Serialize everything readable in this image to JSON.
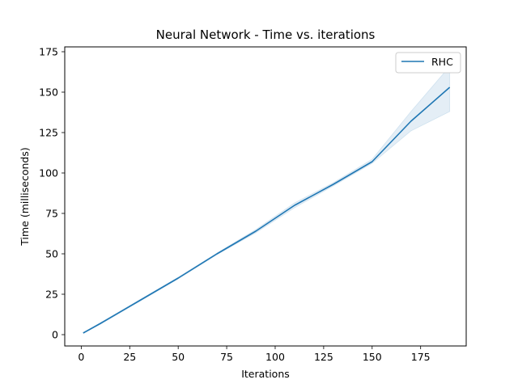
{
  "chart_data": {
    "type": "line",
    "title": "Neural Network - Time vs. iterations",
    "xlabel": "Iterations",
    "ylabel": "Time (milliseconds)",
    "xlim": [
      -8.5,
      198.5
    ],
    "ylim": [
      -7,
      178
    ],
    "xticks": [
      0,
      25,
      50,
      75,
      100,
      125,
      150,
      175
    ],
    "yticks": [
      0,
      25,
      50,
      75,
      100,
      125,
      150,
      175
    ],
    "grid": false,
    "legend_position": "top-right",
    "series": [
      {
        "name": "RHC",
        "color": "#1f77b4",
        "x": [
          1,
          10,
          30,
          50,
          70,
          90,
          110,
          130,
          150,
          170,
          190
        ],
        "y": [
          1,
          7,
          21,
          35,
          50,
          64,
          80,
          93,
          107,
          132,
          153
        ],
        "y_lower": [
          1,
          6.5,
          20.5,
          34.5,
          49.5,
          63,
          78.5,
          92,
          106,
          126,
          138
        ],
        "y_upper": [
          1,
          7.5,
          21.5,
          35.5,
          50.5,
          65,
          81.5,
          94,
          108.5,
          138,
          166
        ]
      }
    ]
  }
}
